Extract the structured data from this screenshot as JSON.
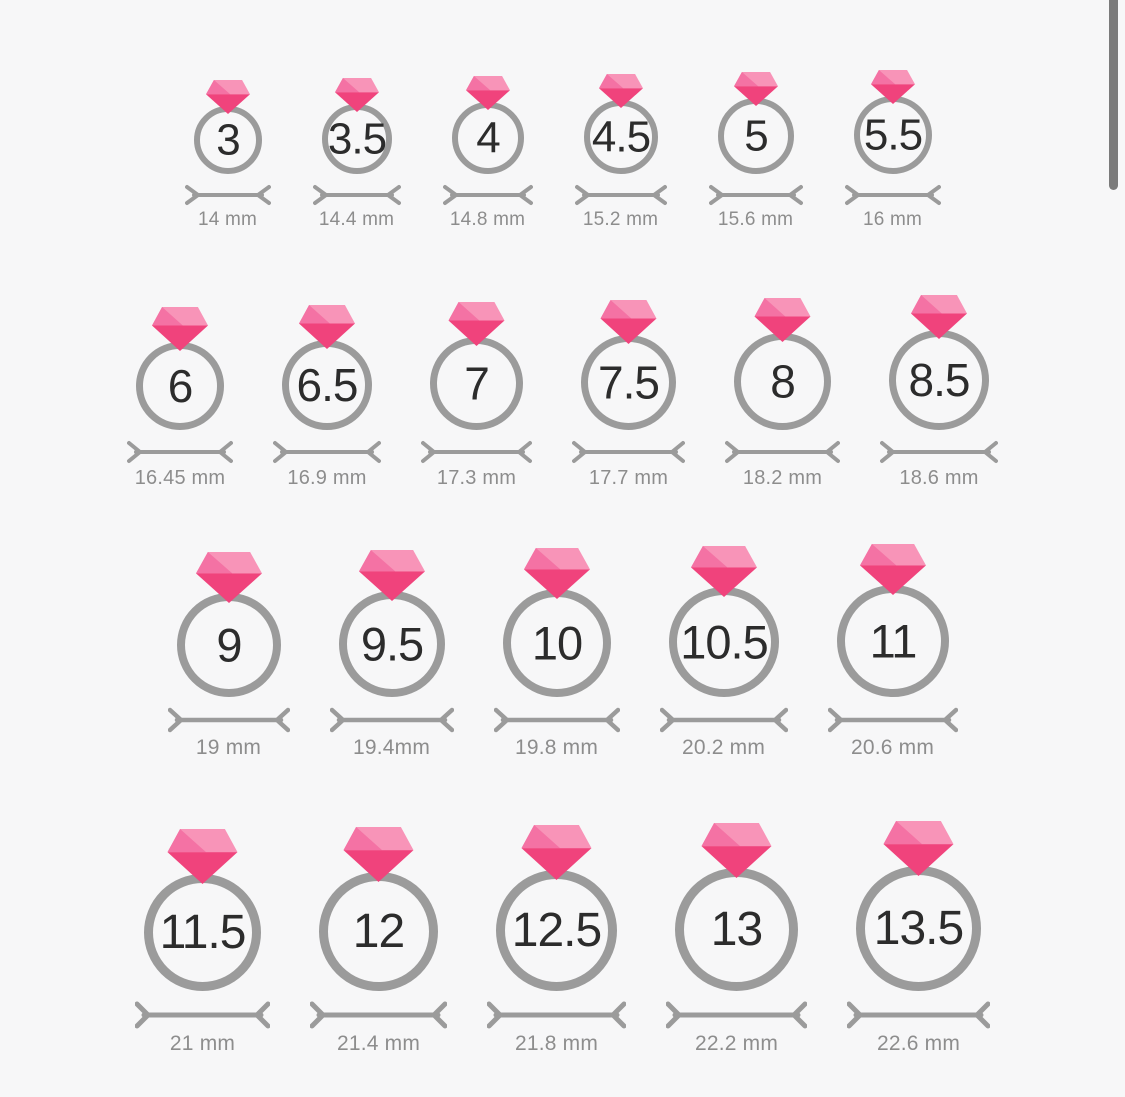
{
  "colors": {
    "background": "#f7f7f8",
    "diamond_light": "#f894b8",
    "diamond_mid": "#f472a4",
    "diamond_dark": "#f0437c",
    "ring_stroke": "#9b9b9b",
    "dimension_line": "#9b9b9b",
    "size_number_text": "#2c2c2c",
    "mm_label_text": "#8d8d8d",
    "scrollbar_thumb": "#7b7b7b"
  },
  "rows": [
    {
      "rings": [
        {
          "size": "3",
          "diameter_label": "14 mm"
        },
        {
          "size": "3.5",
          "diameter_label": "14.4 mm"
        },
        {
          "size": "4",
          "diameter_label": "14.8 mm"
        },
        {
          "size": "4.5",
          "diameter_label": "15.2 mm"
        },
        {
          "size": "5",
          "diameter_label": "15.6 mm"
        },
        {
          "size": "5.5",
          "diameter_label": "16 mm"
        }
      ]
    },
    {
      "rings": [
        {
          "size": "6",
          "diameter_label": "16.45 mm"
        },
        {
          "size": "6.5",
          "diameter_label": "16.9 mm"
        },
        {
          "size": "7",
          "diameter_label": "17.3 mm"
        },
        {
          "size": "7.5",
          "diameter_label": "17.7 mm"
        },
        {
          "size": "8",
          "diameter_label": "18.2 mm"
        },
        {
          "size": "8.5",
          "diameter_label": "18.6 mm"
        }
      ]
    },
    {
      "rings": [
        {
          "size": "9",
          "diameter_label": "19 mm"
        },
        {
          "size": "9.5",
          "diameter_label": "19.4mm"
        },
        {
          "size": "10",
          "diameter_label": "19.8 mm"
        },
        {
          "size": "10.5",
          "diameter_label": "20.2 mm"
        },
        {
          "size": "11",
          "diameter_label": "20.6 mm"
        }
      ]
    },
    {
      "rings": [
        {
          "size": "11.5",
          "diameter_label": "21 mm"
        },
        {
          "size": "12",
          "diameter_label": "21.4 mm"
        },
        {
          "size": "12.5",
          "diameter_label": "21.8 mm"
        },
        {
          "size": "13",
          "diameter_label": "22.2 mm"
        },
        {
          "size": "13.5",
          "diameter_label": "22.6 mm"
        }
      ]
    }
  ]
}
